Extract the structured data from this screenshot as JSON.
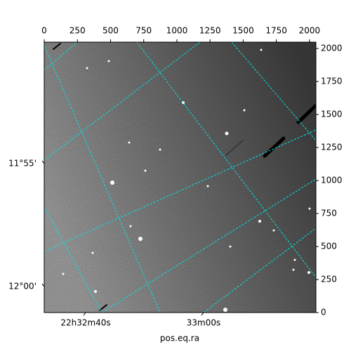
{
  "chart_data": {
    "type": "image",
    "xlabel": "pos.eq.ra",
    "xlim": [
      0,
      2048
    ],
    "xticks": [
      0,
      250,
      500,
      750,
      1000,
      1250,
      1500,
      1750,
      2000
    ],
    "ylim": [
      0,
      2048
    ],
    "yticks": [
      0,
      250,
      500,
      750,
      1000,
      1250,
      1500,
      1750,
      2000
    ],
    "ra_tick_labels": [
      "22h32m40s",
      "33m00s"
    ],
    "dec_tick_labels": [
      "11°55'",
      "12°00'"
    ],
    "grid_color": "#00e5e5"
  }
}
